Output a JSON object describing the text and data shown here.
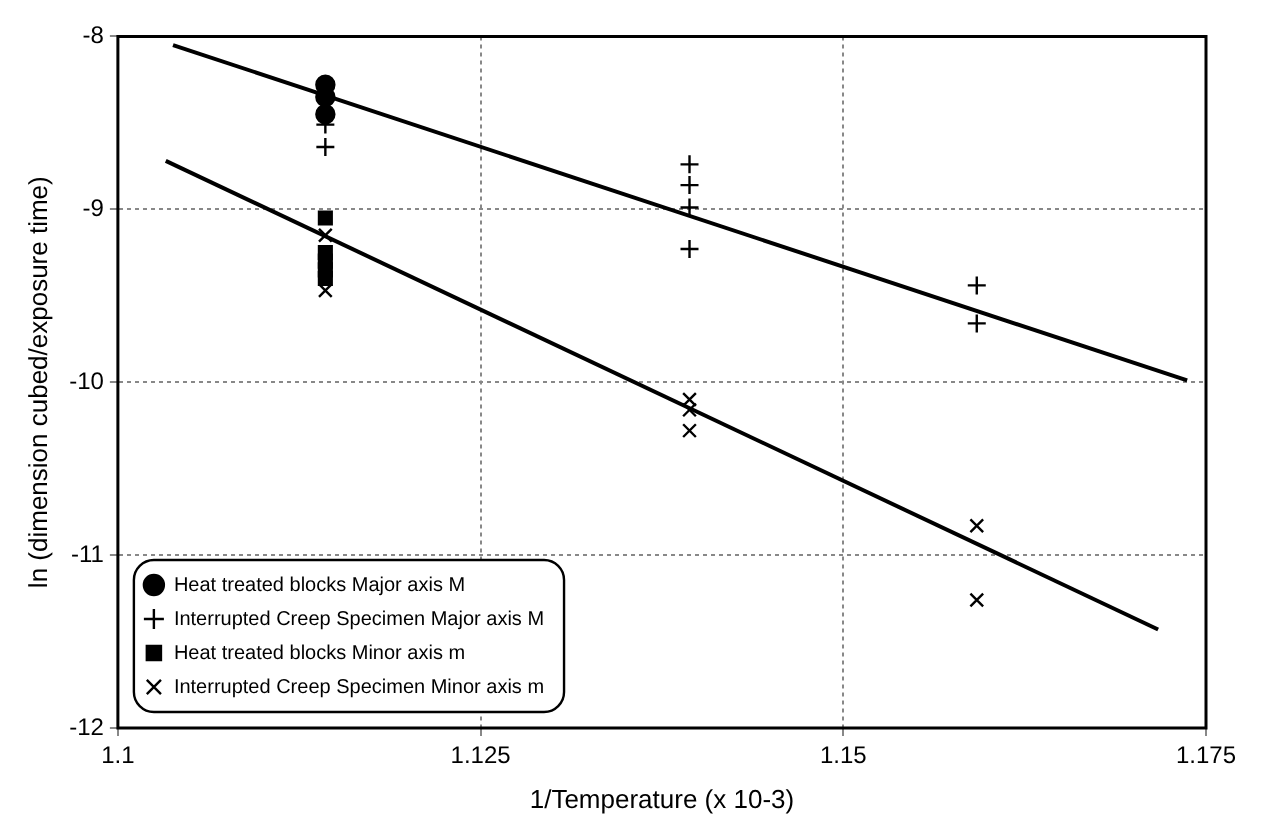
{
  "chart_data": {
    "type": "scatter",
    "xlabel": "1/Temperature (x 10-3)",
    "ylabel": "ln (dimension cubed/exposure time)",
    "xlim": [
      1.1,
      1.175
    ],
    "xticks": [
      1.1,
      1.125,
      1.15,
      1.175
    ],
    "ylim": [
      -12,
      -8
    ],
    "yticks": [
      -12,
      -11,
      -10,
      -9,
      -8
    ],
    "grid": true,
    "legend": "bottom left",
    "series": [
      {
        "name": "Heat treated blocks Major axis M",
        "type": "scatter",
        "marker": "circle",
        "color": "#000000",
        "x": [
          1.1143,
          1.1143,
          1.1143
        ],
        "values": [
          -8.28,
          -8.35,
          -8.45
        ]
      },
      {
        "name": "Interrupted Creep Specimen Major axis M",
        "type": "scatter",
        "marker": "plus",
        "color": "#000000",
        "x": [
          1.1143,
          1.1143,
          1.1394,
          1.1394,
          1.1394,
          1.1394,
          1.1592,
          1.1592
        ],
        "values": [
          -8.51,
          -8.64,
          -8.74,
          -8.86,
          -8.99,
          -9.23,
          -9.44,
          -9.66
        ]
      },
      {
        "name": "Heat treated blocks Minor axis m",
        "type": "scatter",
        "marker": "square",
        "color": "#000000",
        "x": [
          1.1143,
          1.1143,
          1.1143,
          1.1143,
          1.1143
        ],
        "values": [
          -9.05,
          -9.25,
          -9.3,
          -9.35,
          -9.4
        ]
      },
      {
        "name": "Interrupted Creep Specimen Minor axis m",
        "type": "scatter",
        "marker": "cross",
        "color": "#000000",
        "x": [
          1.1143,
          1.1143,
          1.1394,
          1.1394,
          1.1394,
          1.1592,
          1.1592
        ],
        "values": [
          -9.15,
          -9.47,
          -10.1,
          -10.16,
          -10.28,
          -10.83,
          -11.26
        ]
      },
      {
        "type": "line",
        "marker": "none",
        "color": "#000000",
        "x": [
          1.1038,
          1.1737
        ],
        "values": [
          -8.05,
          -9.99
        ]
      },
      {
        "type": "line",
        "marker": "none",
        "color": "#000000",
        "x": [
          1.1033,
          1.1717
        ],
        "values": [
          -8.72,
          -11.43
        ]
      }
    ]
  }
}
